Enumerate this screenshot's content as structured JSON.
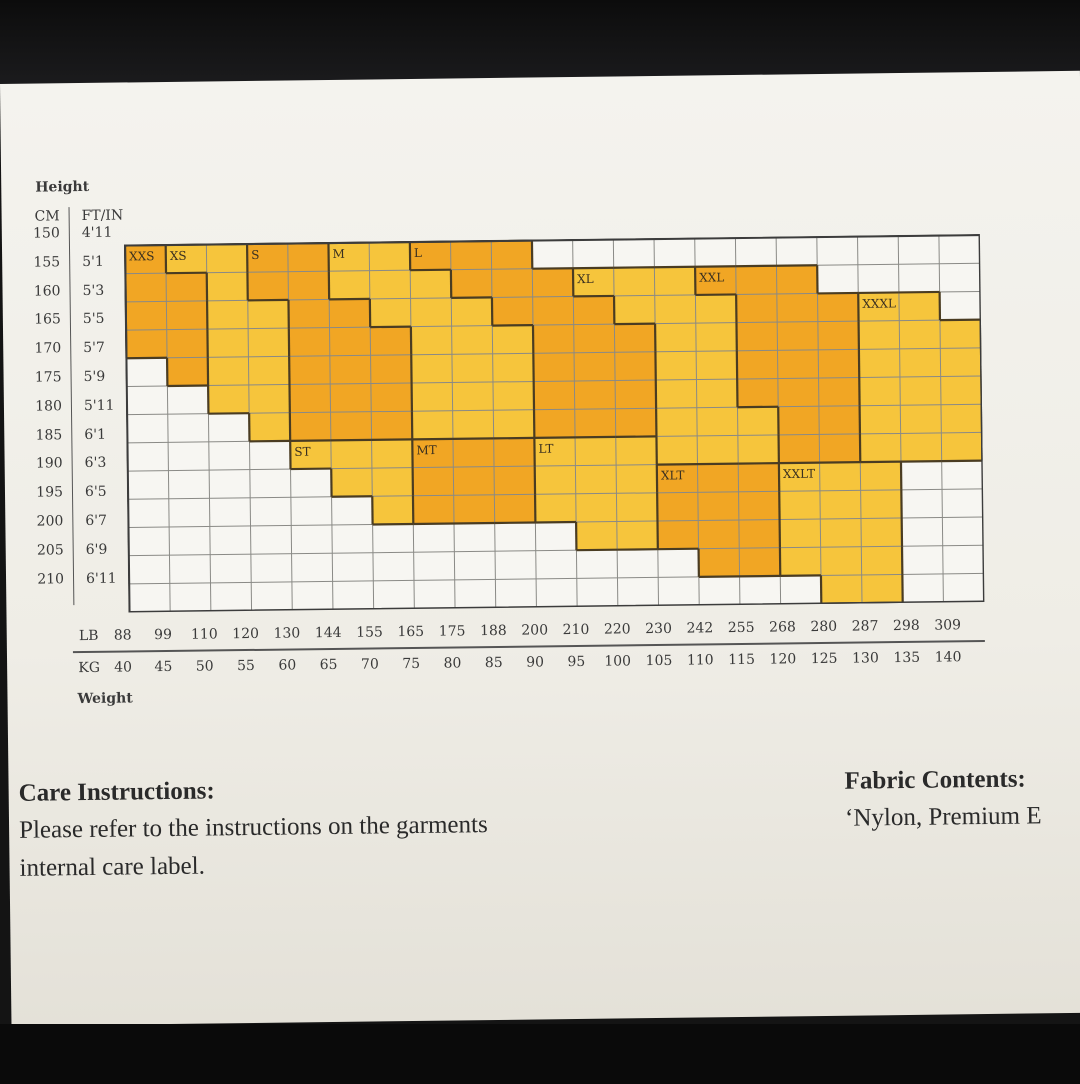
{
  "height_axis": {
    "title": "Height",
    "cm_header": "CM",
    "ftin_header": "FT/IN",
    "cm": [
      "150",
      "155",
      "160",
      "165",
      "170",
      "175",
      "180",
      "185",
      "190",
      "195",
      "200",
      "205",
      "210"
    ],
    "ftin": [
      "4'11",
      "5'1",
      "5'3",
      "5'5",
      "5'7",
      "5'9",
      "5'11",
      "6'1",
      "6'3",
      "6'5",
      "6'7",
      "6'9",
      "6'11"
    ]
  },
  "weight_axis": {
    "title": "Weight",
    "lb_prefix": "LB",
    "kg_prefix": "KG",
    "lb": [
      "88",
      "99",
      "110",
      "120",
      "130",
      "144",
      "155",
      "165",
      "175",
      "188",
      "200",
      "210",
      "220",
      "230",
      "242",
      "255",
      "268",
      "280",
      "287",
      "298",
      "309"
    ],
    "kg": [
      "40",
      "45",
      "50",
      "55",
      "60",
      "65",
      "70",
      "75",
      "80",
      "85",
      "90",
      "95",
      "100",
      "105",
      "110",
      "115",
      "120",
      "125",
      "130",
      "135",
      "140"
    ]
  },
  "chart_data": {
    "type": "heatmap",
    "grid": {
      "rows": 13,
      "cols": 21
    },
    "colors": {
      "light": "#f6c53c",
      "dark": "#f1a624",
      "empty": "#f7f6f2",
      "grid": "#8a8a86",
      "border": "#4a3c22"
    },
    "sizes": [
      {
        "label": "XXS",
        "shade": "dark",
        "spans": [
          [
            0,
            0,
            0
          ],
          [
            1,
            0,
            1
          ],
          [
            2,
            0,
            1
          ],
          [
            3,
            0,
            1
          ],
          [
            4,
            1,
            1
          ]
        ]
      },
      {
        "label": "XS",
        "shade": "light",
        "spans": [
          [
            0,
            1,
            2
          ],
          [
            1,
            2,
            2
          ],
          [
            2,
            2,
            3
          ],
          [
            3,
            2,
            3
          ],
          [
            4,
            2,
            3
          ],
          [
            5,
            2,
            3
          ],
          [
            6,
            3,
            3
          ]
        ]
      },
      {
        "label": "S",
        "shade": "dark",
        "spans": [
          [
            0,
            3,
            4
          ],
          [
            1,
            3,
            4
          ],
          [
            2,
            4,
            5
          ],
          [
            3,
            4,
            6
          ],
          [
            4,
            4,
            6
          ],
          [
            5,
            4,
            6
          ],
          [
            6,
            4,
            6
          ]
        ]
      },
      {
        "label": "M",
        "shade": "light",
        "spans": [
          [
            0,
            5,
            6
          ],
          [
            1,
            5,
            7
          ],
          [
            2,
            6,
            8
          ],
          [
            3,
            7,
            9
          ],
          [
            4,
            7,
            9
          ],
          [
            5,
            7,
            9
          ],
          [
            6,
            7,
            9
          ]
        ]
      },
      {
        "label": "L",
        "shade": "dark",
        "spans": [
          [
            0,
            7,
            9
          ],
          [
            1,
            8,
            10
          ],
          [
            2,
            9,
            11
          ],
          [
            3,
            10,
            12
          ],
          [
            4,
            10,
            12
          ],
          [
            5,
            10,
            12
          ],
          [
            6,
            10,
            12
          ]
        ]
      },
      {
        "label": "XL",
        "shade": "light",
        "spans": [
          [
            1,
            11,
            13
          ],
          [
            2,
            12,
            14
          ],
          [
            3,
            13,
            14
          ],
          [
            4,
            13,
            14
          ],
          [
            5,
            13,
            14
          ],
          [
            6,
            13,
            15
          ],
          [
            7,
            13,
            15
          ]
        ]
      },
      {
        "label": "XXL",
        "shade": "dark",
        "spans": [
          [
            1,
            14,
            16
          ],
          [
            2,
            15,
            17
          ],
          [
            3,
            15,
            17
          ],
          [
            4,
            15,
            17
          ],
          [
            5,
            15,
            17
          ],
          [
            6,
            16,
            17
          ],
          [
            7,
            16,
            17
          ]
        ]
      },
      {
        "label": "XXXL",
        "shade": "light",
        "spans": [
          [
            2,
            18,
            19
          ],
          [
            3,
            18,
            20
          ],
          [
            4,
            18,
            20
          ],
          [
            5,
            18,
            20
          ],
          [
            6,
            18,
            20
          ],
          [
            7,
            18,
            20
          ]
        ]
      },
      {
        "label": "ST",
        "shade": "light",
        "spans": [
          [
            7,
            4,
            6
          ],
          [
            8,
            5,
            6
          ],
          [
            9,
            6,
            6
          ]
        ]
      },
      {
        "label": "MT",
        "shade": "dark",
        "spans": [
          [
            7,
            7,
            9
          ],
          [
            8,
            7,
            9
          ],
          [
            9,
            7,
            9
          ]
        ]
      },
      {
        "label": "LT",
        "shade": "light",
        "spans": [
          [
            7,
            10,
            12
          ],
          [
            8,
            10,
            12
          ],
          [
            9,
            10,
            12
          ],
          [
            10,
            11,
            12
          ]
        ]
      },
      {
        "label": "XLT",
        "shade": "dark",
        "spans": [
          [
            8,
            13,
            15
          ],
          [
            9,
            13,
            15
          ],
          [
            10,
            13,
            15
          ],
          [
            11,
            14,
            15
          ]
        ]
      },
      {
        "label": "XXLT",
        "shade": "light",
        "spans": [
          [
            8,
            16,
            18
          ],
          [
            9,
            16,
            18
          ],
          [
            10,
            16,
            18
          ],
          [
            11,
            16,
            18
          ],
          [
            12,
            17,
            18
          ]
        ]
      }
    ]
  },
  "care": {
    "heading": "Care Instructions:",
    "line1": "Please refer to the instructions on the garments",
    "line2": "internal care label."
  },
  "fabric": {
    "heading": "Fabric Contents:",
    "text": "‘Nylon, Premium E"
  }
}
